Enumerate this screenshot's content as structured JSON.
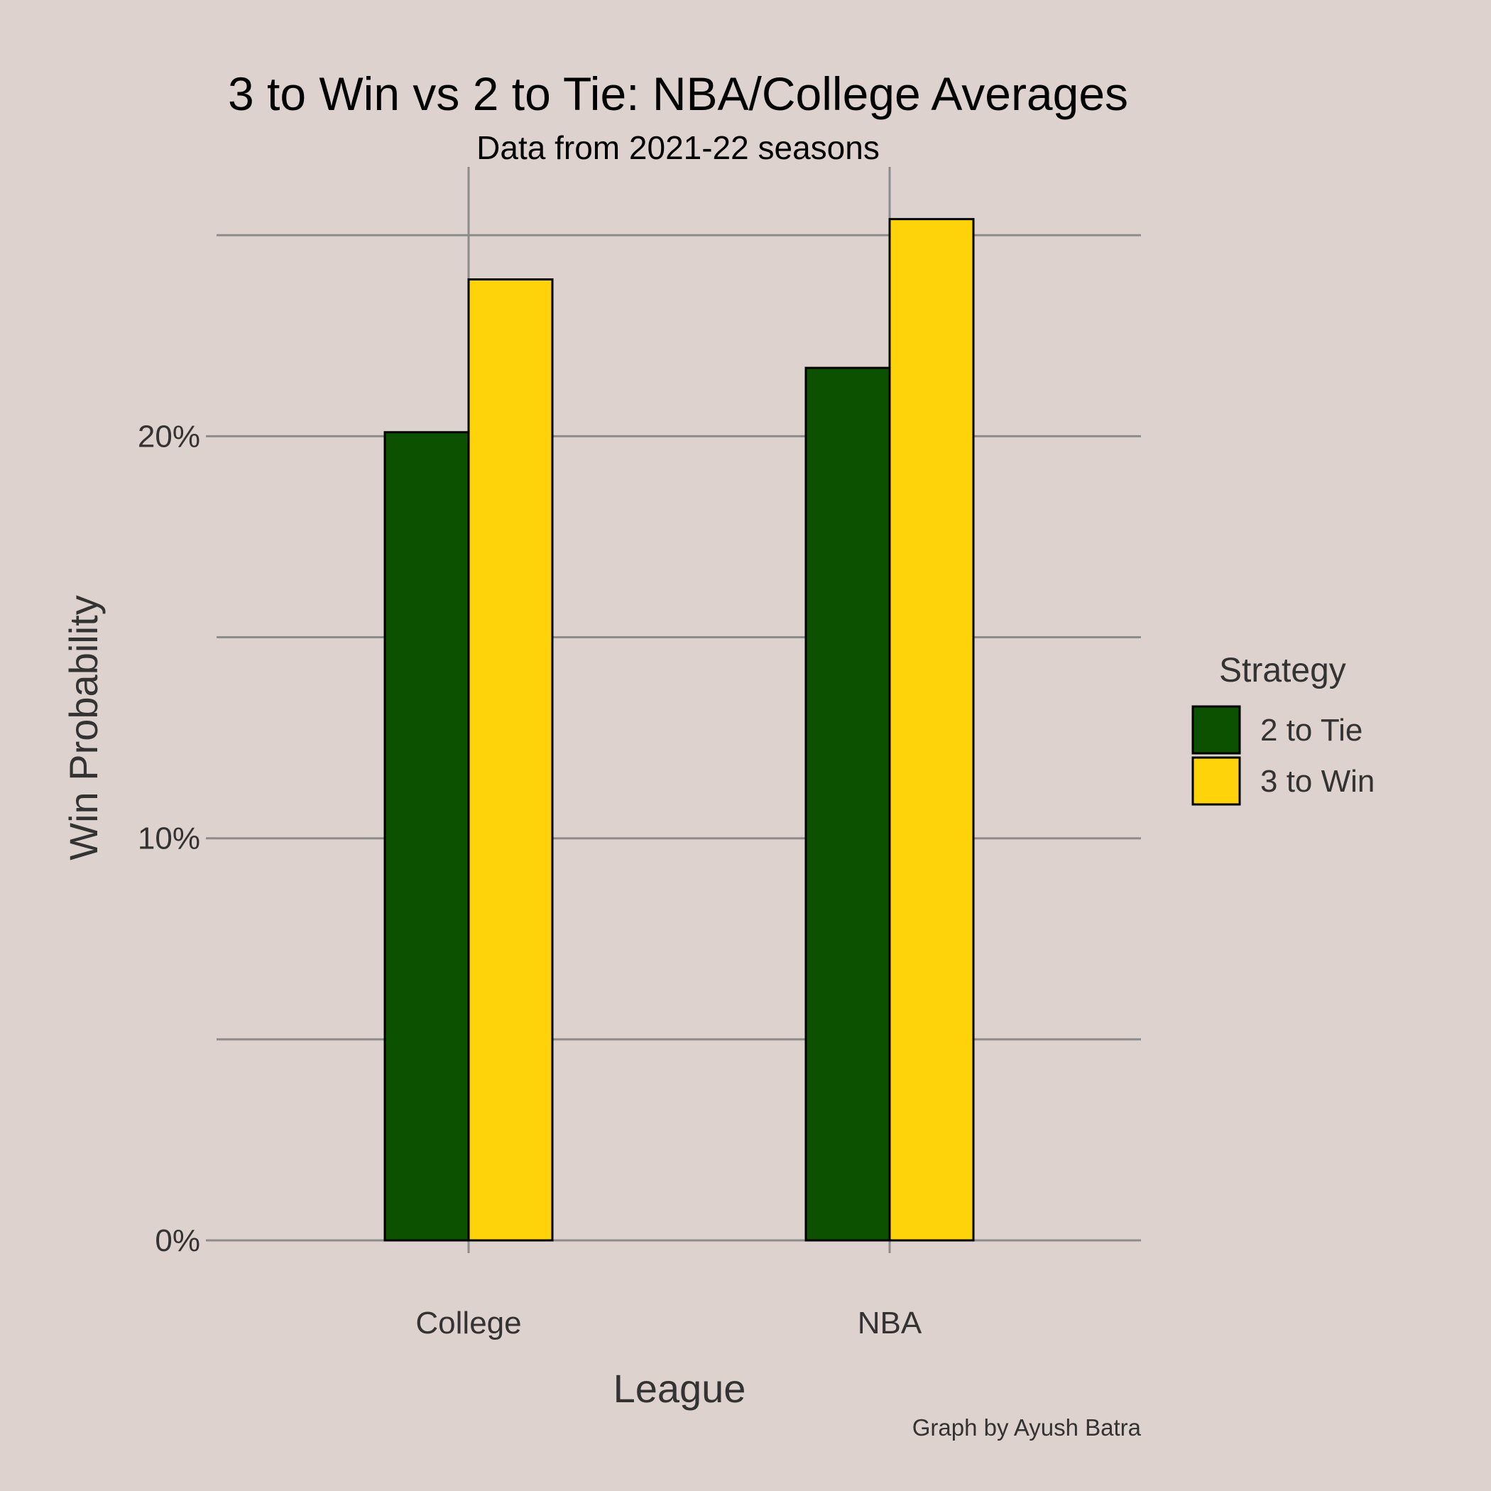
{
  "chart_data": {
    "type": "bar",
    "title": "3 to Win vs 2 to Tie: NBA/College Averages",
    "subtitle": "Data from 2021-22 seasons",
    "xlabel": "League",
    "ylabel": "Win Probability",
    "caption": "Graph by Ayush Batra",
    "categories": [
      "College",
      "NBA"
    ],
    "series": [
      {
        "name": "2 to Tie",
        "values": [
          20.1,
          21.7
        ],
        "color": "#0b5100"
      },
      {
        "name": "3 to Win",
        "values": [
          23.9,
          25.4
        ],
        "color": "#ffd30a"
      }
    ],
    "yticks": [
      0,
      10,
      20
    ],
    "ytick_labels": [
      "0%",
      "10%",
      "20%"
    ],
    "ylim": [
      0,
      26.7
    ],
    "grid": true,
    "legend": {
      "title": "Strategy",
      "position": "right"
    }
  }
}
